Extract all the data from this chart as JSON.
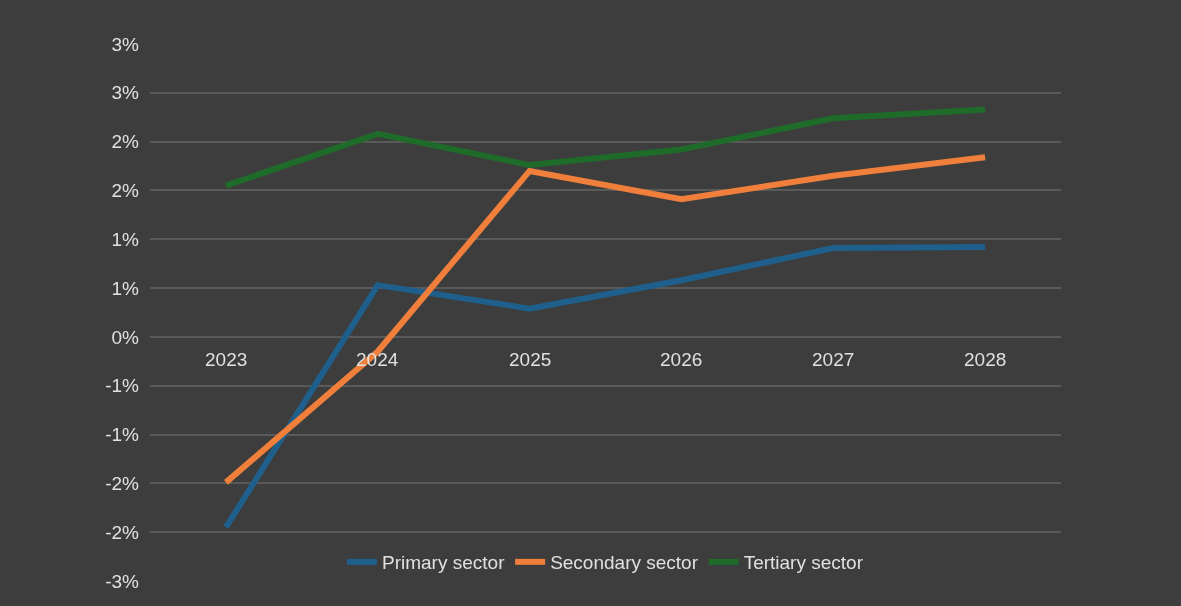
{
  "chart_data": {
    "type": "line",
    "categories": [
      "2023",
      "2024",
      "2025",
      "2026",
      "2027",
      "2028"
    ],
    "series": [
      {
        "name": "Primary sector",
        "color": "#1f5f8b",
        "values": [
          -1.95,
          0.53,
          0.29,
          0.58,
          0.91,
          0.92
        ]
      },
      {
        "name": "Secondary sector",
        "color": "#f07f3c",
        "values": [
          -1.49,
          -0.15,
          1.7,
          1.41,
          1.65,
          1.84
        ]
      },
      {
        "name": "Tertiary sector",
        "color": "#1e6b2a",
        "values": [
          1.55,
          2.08,
          1.76,
          1.92,
          2.24,
          2.33
        ]
      }
    ],
    "ylim": [
      -2.5,
      3.0
    ],
    "yticks": [
      {
        "value": -2.5,
        "label": "-3%"
      },
      {
        "value": -2.0,
        "label": "-2%"
      },
      {
        "value": -1.5,
        "label": "-2%"
      },
      {
        "value": -1.0,
        "label": "-1%"
      },
      {
        "value": -0.5,
        "label": "-1%"
      },
      {
        "value": 0,
        "label": "0%"
      },
      {
        "value": 0.5,
        "label": "1%"
      },
      {
        "value": 1.0,
        "label": "1%"
      },
      {
        "value": 1.5,
        "label": "2%"
      },
      {
        "value": 2.0,
        "label": "2%"
      },
      {
        "value": 2.5,
        "label": "3%"
      },
      {
        "value": 3.0,
        "label": "3%"
      }
    ],
    "grid": "y",
    "legend": "bottom",
    "marker": "none",
    "line_style": "solid"
  }
}
